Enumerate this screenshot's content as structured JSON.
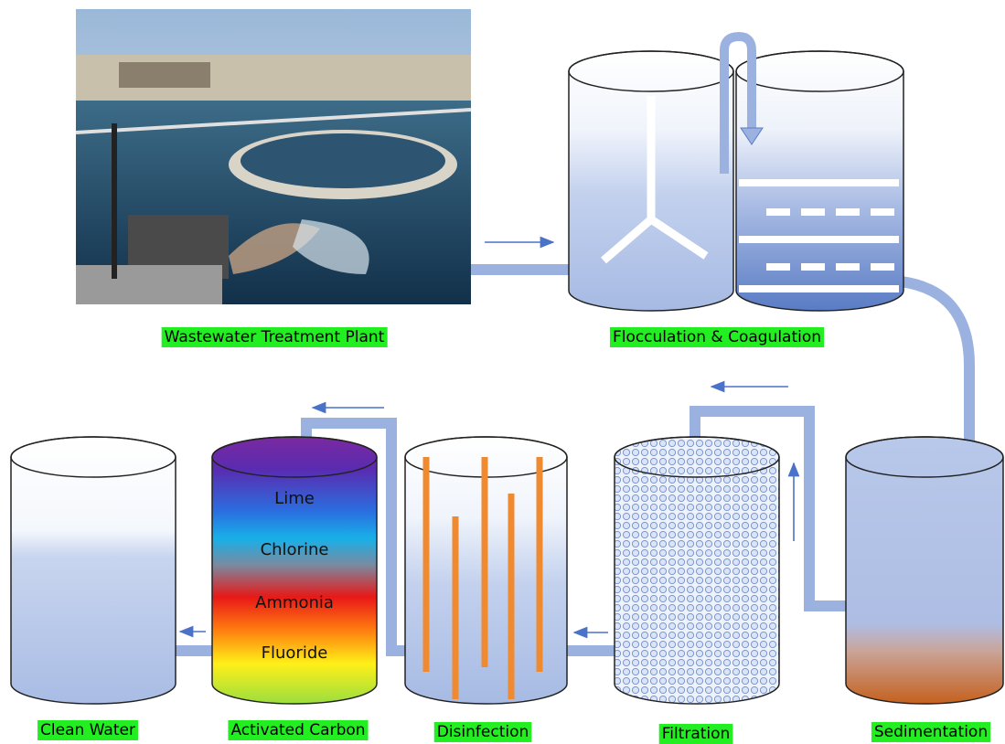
{
  "stages": [
    {
      "label": "Wastewater Treatment Plant"
    },
    {
      "label": "Flocculation & Coagulation"
    },
    {
      "label": "Sedimentation"
    },
    {
      "label": "Filtration"
    },
    {
      "label": "Disinfection"
    },
    {
      "label": "Activated Carbon"
    },
    {
      "label": "Clean Water"
    }
  ],
  "chemicals": [
    "Lime",
    "Chlorine",
    "Ammonia",
    "Fluoride"
  ]
}
